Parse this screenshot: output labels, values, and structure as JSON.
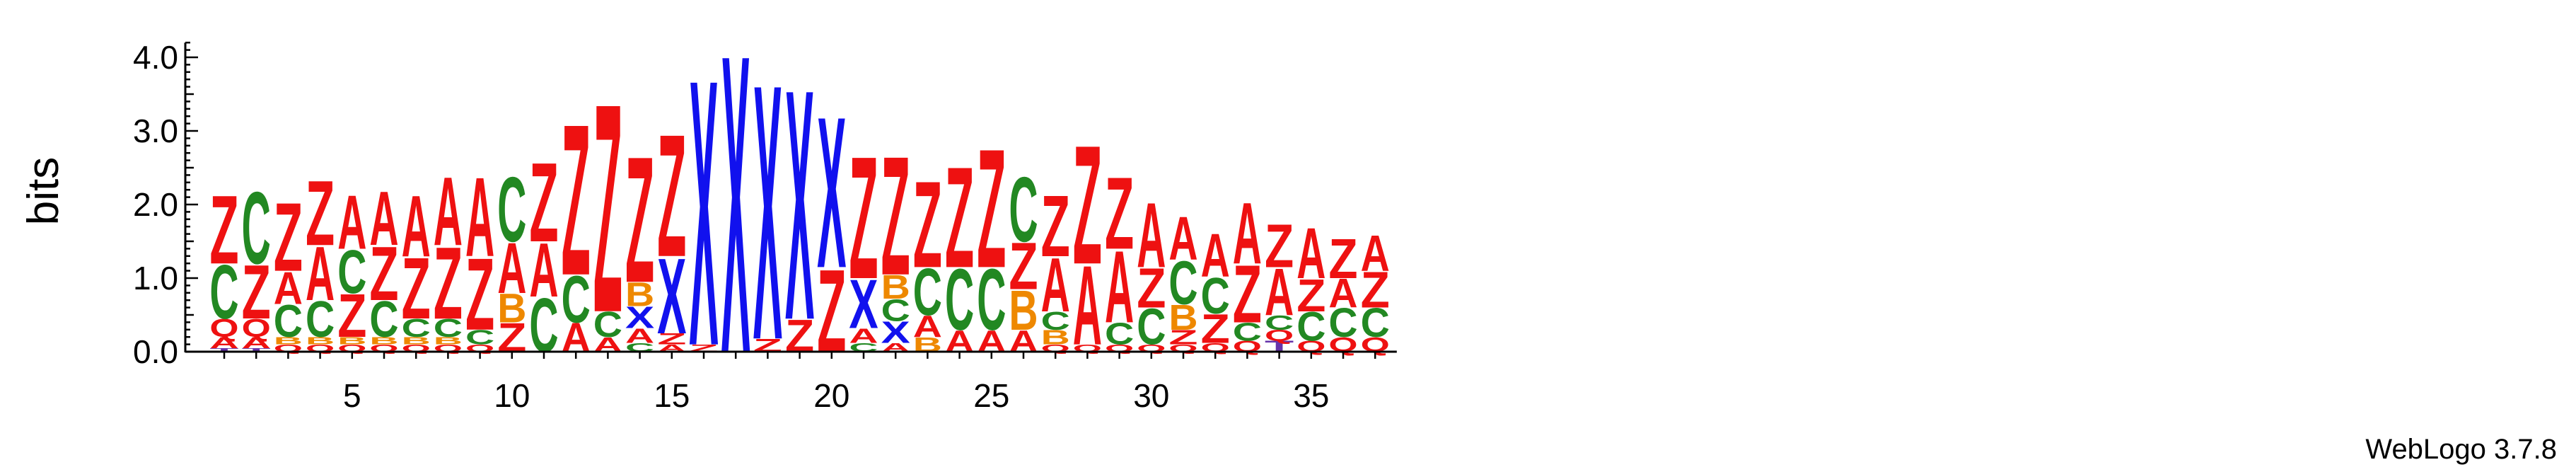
{
  "chart_data": {
    "type": "sequence-logo",
    "ylabel": "bits",
    "ylim": [
      0,
      4.2
    ],
    "y_ticks": [
      "0.0",
      "1.0",
      "2.0",
      "3.0",
      "4.0"
    ],
    "x_ticks": [
      "5",
      "10",
      "15",
      "20",
      "25",
      "30",
      "35"
    ],
    "footer": "WebLogo 3.7.8",
    "colors": {
      "Z": "#ee1111",
      "C": "#228822",
      "X": "#1111ee",
      "A": "#ee1111",
      "B": "#ee8800",
      "Q": "#ee1111",
      "T": "#6633aa"
    },
    "positions": [
      {
        "pos": 1,
        "stack": [
          [
            "T",
            0.05
          ],
          [
            "A",
            0.15
          ],
          [
            "Q",
            0.25
          ],
          [
            "C",
            0.75
          ],
          [
            "Z",
            0.95
          ]
        ]
      },
      {
        "pos": 2,
        "stack": [
          [
            "T",
            0.05
          ],
          [
            "A",
            0.15
          ],
          [
            "Q",
            0.25
          ],
          [
            "Z",
            0.75
          ],
          [
            "C",
            1.0
          ]
        ]
      },
      {
        "pos": 3,
        "stack": [
          [
            "Q",
            0.1
          ],
          [
            "B",
            0.1
          ],
          [
            "C",
            0.45
          ],
          [
            "A",
            0.45
          ],
          [
            "Z",
            0.95
          ]
        ]
      },
      {
        "pos": 4,
        "stack": [
          [
            "Q",
            0.1
          ],
          [
            "B",
            0.1
          ],
          [
            "C",
            0.5
          ],
          [
            "A",
            0.75
          ],
          [
            "Z",
            0.9
          ]
        ]
      },
      {
        "pos": 5,
        "stack": [
          [
            "Q",
            0.1
          ],
          [
            "B",
            0.1
          ],
          [
            "Z",
            0.6
          ],
          [
            "C",
            0.6
          ],
          [
            "A",
            0.75
          ]
        ]
      },
      {
        "pos": 6,
        "stack": [
          [
            "Q",
            0.1
          ],
          [
            "B",
            0.1
          ],
          [
            "C",
            0.5
          ],
          [
            "Z",
            0.75
          ],
          [
            "A",
            0.75
          ]
        ]
      },
      {
        "pos": 7,
        "stack": [
          [
            "Q",
            0.1
          ],
          [
            "B",
            0.1
          ],
          [
            "C",
            0.25
          ],
          [
            "Z",
            0.85
          ],
          [
            "A",
            0.85
          ]
        ]
      },
      {
        "pos": 8,
        "stack": [
          [
            "Q",
            0.1
          ],
          [
            "B",
            0.1
          ],
          [
            "C",
            0.25
          ],
          [
            "Z",
            1.0
          ],
          [
            "A",
            0.95
          ]
        ]
      },
      {
        "pos": 9,
        "stack": [
          [
            "Q",
            0.1
          ],
          [
            "C",
            0.2
          ],
          [
            "Z",
            1.0
          ],
          [
            "A",
            1.1
          ]
        ]
      },
      {
        "pos": 10,
        "stack": [
          [
            "Z",
            0.4
          ],
          [
            "B",
            0.4
          ],
          [
            "A",
            0.7
          ],
          [
            "C",
            0.9
          ]
        ]
      },
      {
        "pos": 11,
        "stack": [
          [
            "C",
            0.75
          ],
          [
            "A",
            0.75
          ],
          [
            "Z",
            1.1
          ]
        ]
      },
      {
        "pos": 12,
        "stack": [
          [
            "A",
            0.4
          ],
          [
            "C",
            0.65
          ],
          [
            "Z",
            2.1
          ]
        ]
      },
      {
        "pos": 13,
        "stack": [
          [
            "A",
            0.2
          ],
          [
            "C",
            0.35
          ],
          [
            "Z",
            2.9
          ]
        ]
      },
      {
        "pos": 14,
        "stack": [
          [
            "C",
            0.12
          ],
          [
            "A",
            0.2
          ],
          [
            "X",
            0.3
          ],
          [
            "B",
            0.33
          ],
          [
            "Z",
            1.75
          ]
        ]
      },
      {
        "pos": 15,
        "stack": [
          [
            "A",
            0.1
          ],
          [
            "Z",
            0.15
          ],
          [
            "X",
            1.05
          ],
          [
            "Z",
            1.7
          ]
        ]
      },
      {
        "pos": 16,
        "stack": [
          [
            "Z",
            0.1
          ],
          [
            "X",
            3.7
          ]
        ]
      },
      {
        "pos": 17,
        "stack": [
          [
            "X",
            4.15
          ]
        ]
      },
      {
        "pos": 18,
        "stack": [
          [
            "Z",
            0.18
          ],
          [
            "X",
            3.55
          ]
        ]
      },
      {
        "pos": 19,
        "stack": [
          [
            "Z",
            0.45
          ],
          [
            "X",
            3.2
          ]
        ]
      },
      {
        "pos": 20,
        "stack": [
          [
            "Z",
            1.15
          ],
          [
            "X",
            2.1
          ]
        ]
      },
      {
        "pos": 21,
        "stack": [
          [
            "C",
            0.12
          ],
          [
            "A",
            0.2
          ],
          [
            "X",
            0.68
          ],
          [
            "Z",
            1.7
          ]
        ]
      },
      {
        "pos": 22,
        "stack": [
          [
            "A",
            0.12
          ],
          [
            "X",
            0.3
          ],
          [
            "C",
            0.3
          ],
          [
            "B",
            0.33
          ],
          [
            "Z",
            1.65
          ]
        ]
      },
      {
        "pos": 23,
        "stack": [
          [
            "B",
            0.2
          ],
          [
            "A",
            0.3
          ],
          [
            "C",
            0.65
          ],
          [
            "Z",
            1.2
          ]
        ]
      },
      {
        "pos": 24,
        "stack": [
          [
            "A",
            0.3
          ],
          [
            "C",
            0.85
          ],
          [
            "Z",
            1.4
          ]
        ]
      },
      {
        "pos": 25,
        "stack": [
          [
            "A",
            0.3
          ],
          [
            "C",
            0.85
          ],
          [
            "Z",
            1.65
          ]
        ]
      },
      {
        "pos": 26,
        "stack": [
          [
            "A",
            0.3
          ],
          [
            "B",
            0.55
          ],
          [
            "Z",
            0.65
          ],
          [
            "C",
            0.9
          ]
        ]
      },
      {
        "pos": 27,
        "stack": [
          [
            "Q",
            0.1
          ],
          [
            "B",
            0.2
          ],
          [
            "C",
            0.25
          ],
          [
            "A",
            0.75
          ],
          [
            "Z",
            0.85
          ]
        ]
      },
      {
        "pos": 28,
        "stack": [
          [
            "Q",
            0.1
          ],
          [
            "A",
            1.1
          ],
          [
            "Z",
            1.65
          ]
        ]
      },
      {
        "pos": 29,
        "stack": [
          [
            "Q",
            0.1
          ],
          [
            "C",
            0.3
          ],
          [
            "A",
            1.0
          ],
          [
            "Z",
            1.0
          ]
        ]
      },
      {
        "pos": 30,
        "stack": [
          [
            "Q",
            0.1
          ],
          [
            "C",
            0.5
          ],
          [
            "Z",
            0.55
          ],
          [
            "A",
            0.9
          ]
        ]
      },
      {
        "pos": 31,
        "stack": [
          [
            "Q",
            0.1
          ],
          [
            "Z",
            0.2
          ],
          [
            "B",
            0.35
          ],
          [
            "C",
            0.6
          ],
          [
            "A",
            0.6
          ]
        ]
      },
      {
        "pos": 32,
        "stack": [
          [
            "Q",
            0.12
          ],
          [
            "Z",
            0.4
          ],
          [
            "C",
            0.5
          ],
          [
            "A",
            0.6
          ]
        ]
      },
      {
        "pos": 33,
        "stack": [
          [
            "Q",
            0.15
          ],
          [
            "C",
            0.25
          ],
          [
            "Z",
            0.8
          ],
          [
            "A",
            0.85
          ]
        ]
      },
      {
        "pos": 34,
        "stack": [
          [
            "T",
            0.15
          ],
          [
            "Q",
            0.15
          ],
          [
            "C",
            0.2
          ],
          [
            "A",
            0.65
          ],
          [
            "Z",
            0.6
          ]
        ]
      },
      {
        "pos": 35,
        "stack": [
          [
            "Q",
            0.15
          ],
          [
            "C",
            0.4
          ],
          [
            "Z",
            0.45
          ],
          [
            "A",
            0.7
          ]
        ]
      },
      {
        "pos": 36,
        "stack": [
          [
            "Q",
            0.2
          ],
          [
            "C",
            0.4
          ],
          [
            "A",
            0.4
          ],
          [
            "Z",
            0.55
          ]
        ]
      },
      {
        "pos": 37,
        "stack": [
          [
            "Q",
            0.2
          ],
          [
            "C",
            0.4
          ],
          [
            "Z",
            0.5
          ],
          [
            "A",
            0.5
          ]
        ]
      }
    ]
  }
}
